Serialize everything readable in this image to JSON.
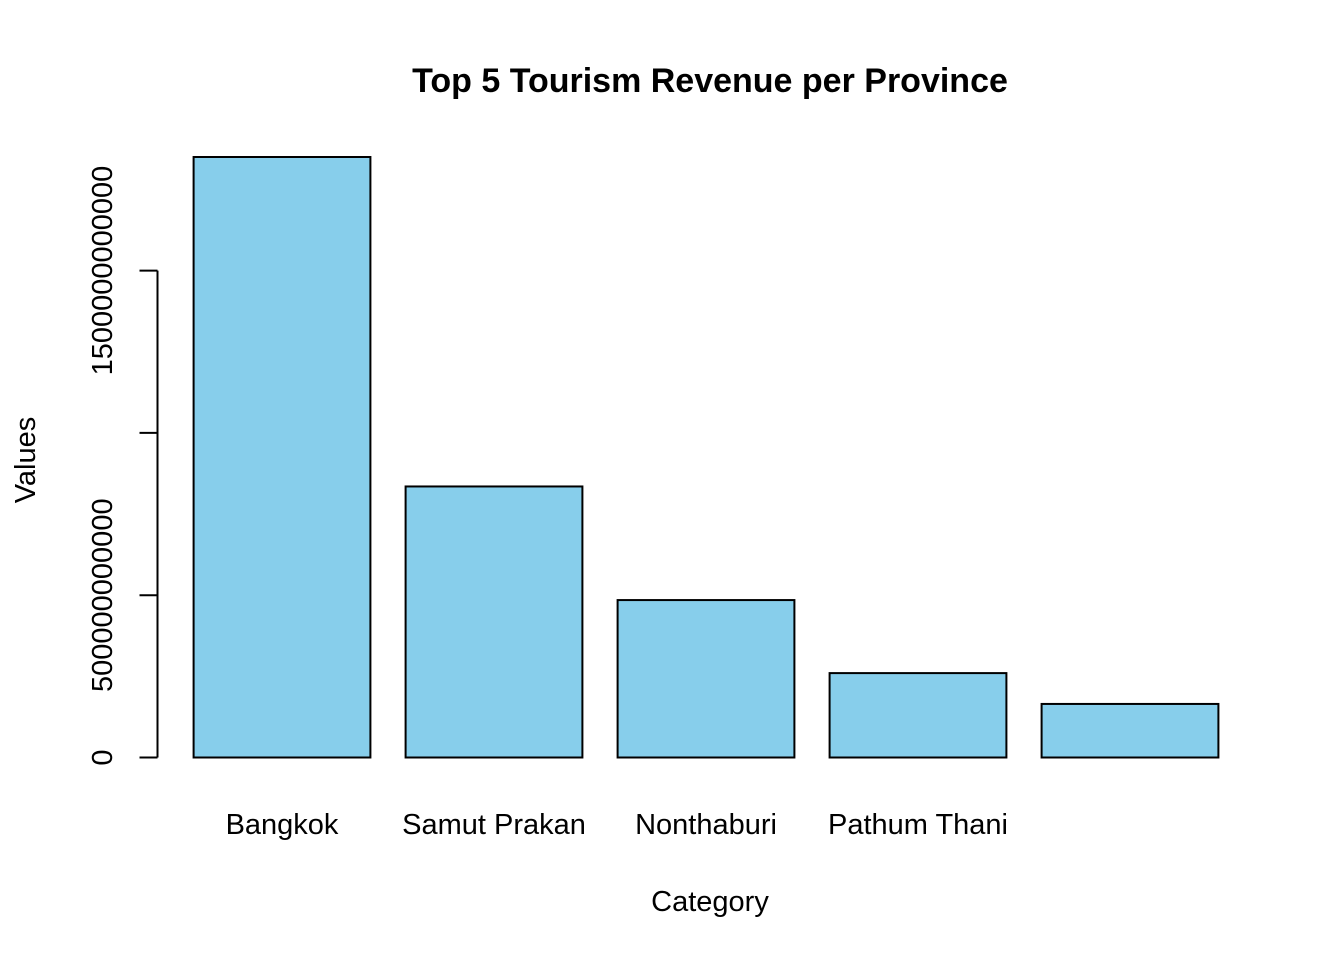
{
  "chart_data": {
    "type": "bar",
    "title": "Top 5 Tourism Revenue per Province",
    "xlabel": "Category",
    "ylabel": "Values",
    "categories": [
      "Bangkok",
      "Samut Prakan",
      "Nonthaburi",
      "Pathum Thani",
      ""
    ],
    "values": [
      1850000000000,
      835000000000,
      485000000000,
      260000000000,
      165000000000
    ],
    "ylim": [
      0,
      1850000000000
    ],
    "yticks": [
      0,
      500000000000,
      1000000000000,
      1500000000000
    ],
    "ytick_labels": [
      "0",
      "500000000000",
      "",
      "1500000000000"
    ],
    "bar_color": "#87CEEB",
    "bar_border_color": "#000000",
    "grid": false,
    "legend": "none"
  }
}
